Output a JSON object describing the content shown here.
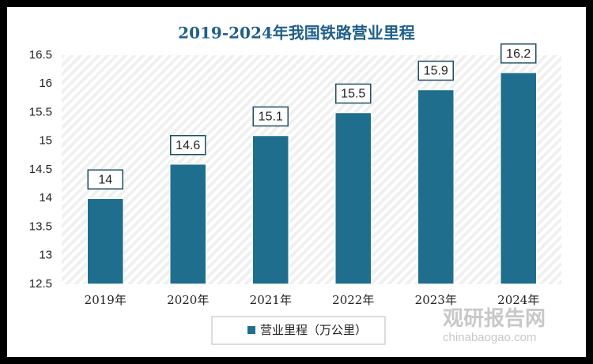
{
  "chart_data": {
    "type": "bar",
    "title": "2019-2024年我国铁路营业里程",
    "categories": [
      "2019年",
      "2020年",
      "2021年",
      "2022年",
      "2023年",
      "2024年"
    ],
    "series": [
      {
        "name": "营业里程（万公里）",
        "color": "#1f6e8e",
        "values": [
          14,
          14.6,
          15.1,
          15.5,
          15.9,
          16.2
        ]
      }
    ],
    "ylim": [
      12.5,
      16.5
    ],
    "yticks": [
      12.5,
      13,
      13.5,
      14,
      14.5,
      15,
      15.5,
      16,
      16.5
    ],
    "legend": "bottom",
    "watermark": {
      "brand": "观研报告网",
      "site": "chinabaogao.com"
    }
  }
}
